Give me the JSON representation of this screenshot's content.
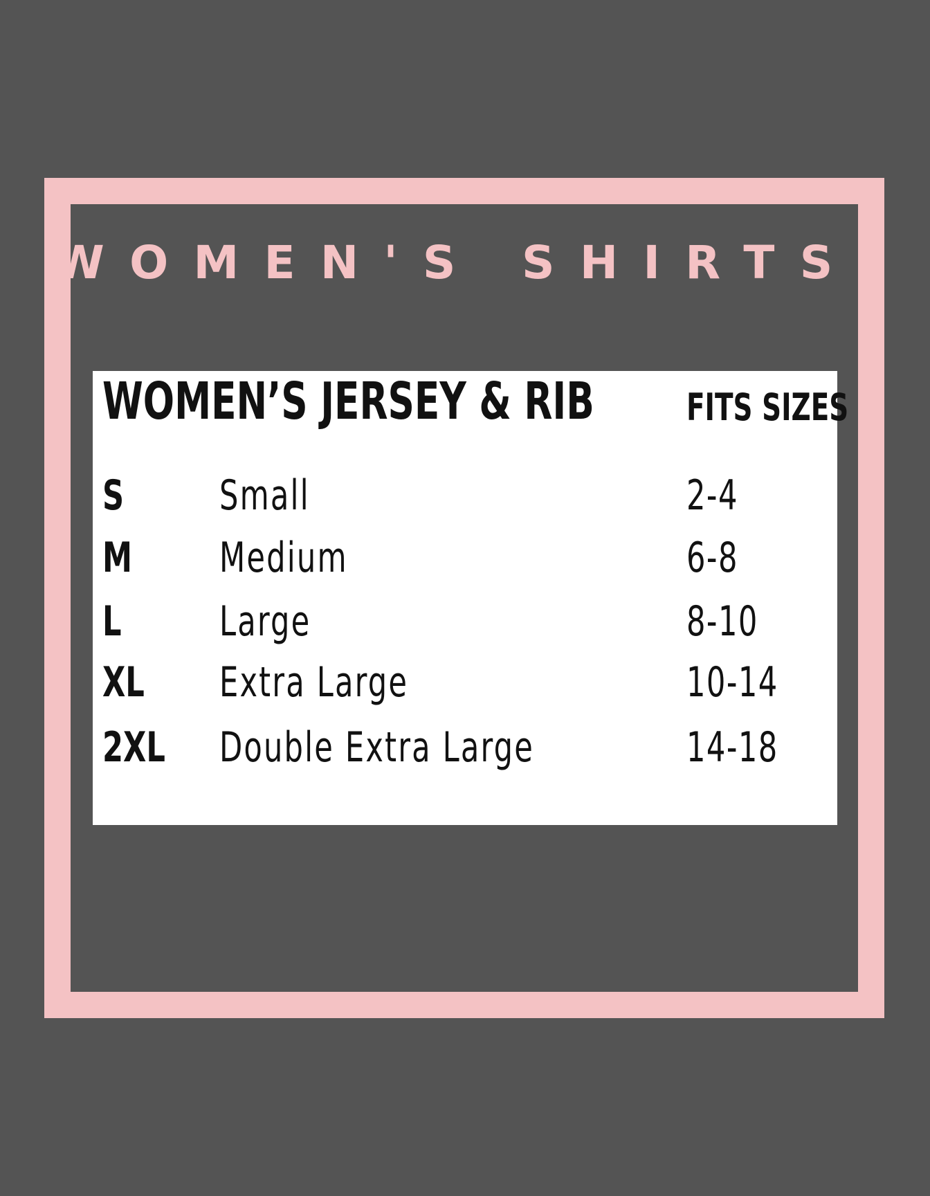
{
  "title": "WOMEN'S SHIRTS:",
  "colors": {
    "background": "#545454",
    "accent": "#f4c2c4",
    "card": "#ffffff"
  },
  "table": {
    "heading": "WOMEN’S JERSEY & RIB",
    "fits_header": "FITS SIZES",
    "rows": [
      {
        "code": "S",
        "name": "Small",
        "fits": "2-4"
      },
      {
        "code": "M",
        "name": "Medium",
        "fits": "6-8"
      },
      {
        "code": "L",
        "name": "Large",
        "fits": "8-10"
      },
      {
        "code": "XL",
        "name": "Extra Large",
        "fits": "10-14"
      },
      {
        "code": "2XL",
        "name": "Double Extra Large",
        "fits": "14-18"
      }
    ]
  }
}
